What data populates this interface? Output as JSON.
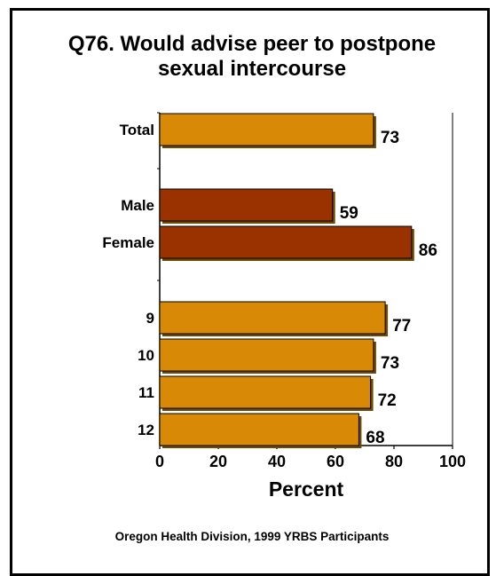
{
  "chart_data": {
    "type": "bar",
    "orientation": "horizontal",
    "title_line1": "Q76. Would advise peer to postpone",
    "title_line2": "sexual intercourse",
    "xlabel": "Percent",
    "ylabel": "",
    "xlim": [
      0,
      100
    ],
    "xticks": [
      "0",
      "20",
      "40",
      "60",
      "80",
      "100"
    ],
    "categories": [
      "Total",
      "Male",
      "Female",
      "9",
      "10",
      "11",
      "12"
    ],
    "values": [
      73,
      59,
      86,
      77,
      73,
      72,
      68
    ],
    "data_labels": [
      "73",
      "59",
      "86",
      "77",
      "73",
      "72",
      "68"
    ],
    "groups": [
      "total",
      "sex",
      "sex",
      "grade",
      "grade",
      "grade",
      "grade"
    ],
    "colors": {
      "total": "#d88a06",
      "sex": "#9a3200",
      "grade": "#d88a06",
      "shadow": "#6e4a00",
      "axis": "#000000"
    },
    "grid": false,
    "legend": "none",
    "source": "Oregon Health Division, 1999 YRBS Participants"
  }
}
